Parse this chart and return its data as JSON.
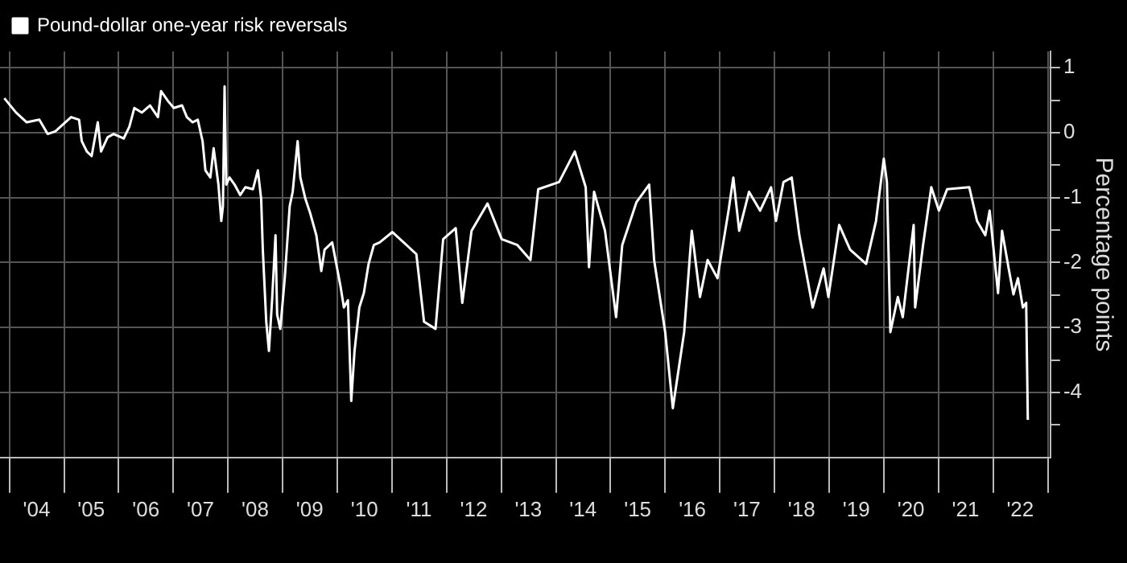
{
  "chart_data": {
    "type": "line",
    "ylabel": "Percentage points",
    "legend": "top left",
    "grid": true,
    "marker": "none",
    "xlim": [
      "2003-10-30",
      "2023-01-19"
    ],
    "ylim": [
      -5,
      1.25
    ],
    "xticks": [
      {
        "value": "2004-01-01",
        "label": null
      },
      {
        "value": "2004-07-01",
        "label": "'04"
      },
      {
        "value": "2005-01-01",
        "label": null
      },
      {
        "value": "2005-07-01",
        "label": "'05"
      },
      {
        "value": "2006-01-01",
        "label": null
      },
      {
        "value": "2006-07-01",
        "label": "'06"
      },
      {
        "value": "2007-01-01",
        "label": null
      },
      {
        "value": "2007-07-01",
        "label": "'07"
      },
      {
        "value": "2008-01-01",
        "label": null
      },
      {
        "value": "2008-07-01",
        "label": "'08"
      },
      {
        "value": "2009-01-01",
        "label": null
      },
      {
        "value": "2009-07-01",
        "label": "'09"
      },
      {
        "value": "2010-01-01",
        "label": null
      },
      {
        "value": "2010-07-01",
        "label": "'10"
      },
      {
        "value": "2011-01-01",
        "label": null
      },
      {
        "value": "2011-07-01",
        "label": "'11"
      },
      {
        "value": "2012-01-01",
        "label": null
      },
      {
        "value": "2012-07-01",
        "label": "'12"
      },
      {
        "value": "2013-01-01",
        "label": null
      },
      {
        "value": "2013-07-01",
        "label": "'13"
      },
      {
        "value": "2014-01-01",
        "label": null
      },
      {
        "value": "2014-07-01",
        "label": "'14"
      },
      {
        "value": "2015-01-01",
        "label": null
      },
      {
        "value": "2015-07-01",
        "label": "'15"
      },
      {
        "value": "2016-01-01",
        "label": null
      },
      {
        "value": "2016-07-01",
        "label": "'16"
      },
      {
        "value": "2017-01-01",
        "label": null
      },
      {
        "value": "2017-07-01",
        "label": "'17"
      },
      {
        "value": "2018-01-01",
        "label": null
      },
      {
        "value": "2018-07-01",
        "label": "'18"
      },
      {
        "value": "2019-01-01",
        "label": null
      },
      {
        "value": "2019-07-01",
        "label": "'19"
      },
      {
        "value": "2020-01-01",
        "label": null
      },
      {
        "value": "2020-07-01",
        "label": "'20"
      },
      {
        "value": "2021-01-01",
        "label": null
      },
      {
        "value": "2021-07-01",
        "label": "'21"
      },
      {
        "value": "2022-01-01",
        "label": null
      },
      {
        "value": "2022-07-01",
        "label": "'22"
      },
      {
        "value": "2023-01-01",
        "label": null
      }
    ],
    "yticks": [
      1,
      {
        "value": 0.5,
        "label": null
      },
      0,
      {
        "value": -0.5,
        "label": null
      },
      -1,
      {
        "value": -1.5,
        "label": null
      },
      -2,
      {
        "value": -2.5,
        "label": null
      },
      -3,
      {
        "value": -3.5,
        "label": null
      },
      -4,
      {
        "value": -4.5,
        "label": null
      }
    ],
    "series": [
      {
        "name": "Pound-dollar one-year risk reversals",
        "color": "#ffffff",
        "x": [
          "2003-11-28",
          "2004-02-14",
          "2004-04-26",
          "2004-07-19",
          "2004-09-13",
          "2004-11-03",
          "2005-02-17",
          "2005-04-11",
          "2005-04-29",
          "2005-06-02",
          "2005-07-04",
          "2005-08-14",
          "2005-09-05",
          "2005-10-19",
          "2005-11-28",
          "2006-02-03",
          "2006-03-13",
          "2006-04-15",
          "2006-06-05",
          "2006-07-29",
          "2006-09-20",
          "2006-10-11",
          "2006-11-25",
          "2007-01-04",
          "2007-02-28",
          "2007-04-01",
          "2007-05-10",
          "2007-06-13",
          "2007-07-15",
          "2007-08-03",
          "2007-09-05",
          "2007-09-27",
          "2007-10-29",
          "2007-11-17",
          "2007-11-28",
          "2007-12-09",
          "2007-12-20",
          "2008-01-11",
          "2008-02-14",
          "2008-03-23",
          "2008-04-26",
          "2008-06-16",
          "2008-07-19",
          "2008-08-10",
          "2008-08-21",
          "2008-09-13",
          "2008-10-01",
          "2008-10-22",
          "2008-11-14",
          "2008-11-25",
          "2008-12-16",
          "2009-01-15",
          "2009-02-17",
          "2009-03-09",
          "2009-04-11",
          "2009-04-29",
          "2009-06-02",
          "2009-07-04",
          "2009-08-14",
          "2009-09-16",
          "2009-10-08",
          "2009-11-28",
          "2010-01-22",
          "2010-02-14",
          "2010-03-13",
          "2010-04-04",
          "2010-04-26",
          "2010-05-28",
          "2010-06-27",
          "2010-07-29",
          "2010-09-02",
          "2010-10-11",
          "2011-01-04",
          "2011-06-13",
          "2011-08-03",
          "2011-10-19",
          "2011-12-09",
          "2012-03-02",
          "2012-04-15",
          "2012-06-16",
          "2012-10-01",
          "2013-01-04",
          "2013-04-19",
          "2013-07-15",
          "2013-09-05",
          "2014-01-22",
          "2014-05-07",
          "2014-07-19",
          "2014-08-10",
          "2014-09-13",
          "2014-11-25",
          "2015-02-07",
          "2015-03-20",
          "2015-06-23",
          "2015-09-16",
          "2015-10-19",
          "2016-01-01",
          "2016-02-21",
          "2016-05-07",
          "2016-06-27",
          "2016-08-21",
          "2016-10-11",
          "2016-12-16",
          "2017-02-28",
          "2017-04-01",
          "2017-05-10",
          "2017-07-15",
          "2017-09-27",
          "2017-12-09",
          "2018-01-11",
          "2018-03-02",
          "2018-04-26",
          "2018-06-16",
          "2018-09-13",
          "2018-11-25",
          "2018-12-27",
          "2019-03-09",
          "2019-05-21",
          "2019-09-05",
          "2019-11-10",
          "2020-01-01",
          "2020-01-22",
          "2020-02-14",
          "2020-04-04",
          "2020-05-07",
          "2020-07-19",
          "2020-07-29",
          "2020-09-20",
          "2020-11-14",
          "2021-01-04",
          "2021-02-28",
          "2021-07-26",
          "2021-09-16",
          "2021-11-10",
          "2021-12-09",
          "2022-02-03",
          "2022-03-02",
          "2022-04-15",
          "2022-05-17",
          "2022-06-16",
          "2022-07-19",
          "2022-08-10",
          "2022-08-21"
        ],
        "values": [
          0.53,
          0.31,
          0.16,
          0.2,
          -0.02,
          0.02,
          0.24,
          0.2,
          -0.13,
          -0.29,
          -0.36,
          0.16,
          -0.29,
          -0.07,
          -0.02,
          -0.09,
          0.09,
          0.38,
          0.31,
          0.42,
          0.24,
          0.64,
          0.49,
          0.38,
          0.42,
          0.24,
          0.16,
          0.2,
          -0.13,
          -0.58,
          -0.69,
          -0.24,
          -0.8,
          -1.36,
          -1.13,
          0.71,
          -0.8,
          -0.69,
          -0.8,
          -0.96,
          -0.84,
          -0.87,
          -0.58,
          -1.02,
          -1.8,
          -2.91,
          -3.36,
          -2.58,
          -1.58,
          -2.8,
          -3.02,
          -2.24,
          -1.13,
          -0.91,
          -0.13,
          -0.69,
          -1.02,
          -1.24,
          -1.58,
          -2.13,
          -1.8,
          -1.69,
          -2.36,
          -2.69,
          -2.58,
          -4.13,
          -3.36,
          -2.69,
          -2.47,
          -2.02,
          -1.73,
          -1.69,
          -1.53,
          -1.87,
          -2.91,
          -3.02,
          -1.64,
          -1.47,
          -2.62,
          -1.51,
          -1.09,
          -1.64,
          -1.73,
          -1.96,
          -0.87,
          -0.76,
          -0.29,
          -0.84,
          -2.07,
          -0.91,
          -1.51,
          -2.84,
          -1.73,
          -1.07,
          -0.8,
          -1.96,
          -3.07,
          -4.24,
          -3.07,
          -1.51,
          -2.53,
          -1.96,
          -2.24,
          -1.2,
          -0.69,
          -1.51,
          -0.91,
          -1.2,
          -0.84,
          -1.36,
          -0.76,
          -0.69,
          -1.58,
          -2.69,
          -2.09,
          -2.53,
          -1.42,
          -1.8,
          -2.02,
          -1.36,
          -0.4,
          -0.76,
          -3.07,
          -2.53,
          -2.84,
          -1.42,
          -2.69,
          -1.73,
          -0.84,
          -1.2,
          -0.87,
          -0.84,
          -1.36,
          -1.58,
          -1.2,
          -2.47,
          -1.51,
          -2.09,
          -2.49,
          -2.24,
          -2.69,
          -2.62,
          -4.42
        ]
      }
    ]
  }
}
